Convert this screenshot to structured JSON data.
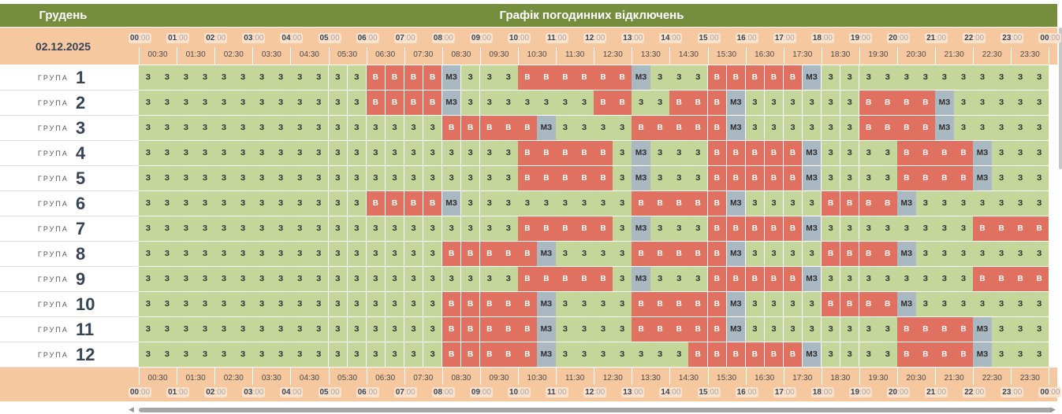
{
  "header": {
    "month": "Грудень",
    "title": "Графік погодинних відключень"
  },
  "date": "02.12.2025",
  "group_word": "ГРУПА",
  "hours": [
    "00",
    "01",
    "02",
    "03",
    "04",
    "05",
    "06",
    "07",
    "08",
    "09",
    "10",
    "11",
    "12",
    "13",
    "14",
    "15",
    "16",
    "17",
    "18",
    "19",
    "20",
    "21",
    "22",
    "23",
    "00"
  ],
  "minutes": ":00",
  "halves": [
    "00:30",
    "01:30",
    "02:30",
    "03:30",
    "04:30",
    "05:30",
    "06:30",
    "07:30",
    "08:30",
    "09:30",
    "10:30",
    "11:30",
    "12:30",
    "13:30",
    "14:30",
    "15:30",
    "16:30",
    "17:30",
    "18:30",
    "19:30",
    "20:30",
    "21:30",
    "22:30",
    "23:30"
  ],
  "labels": {
    "on": "З",
    "off": "В",
    "maybe": "МЗ"
  },
  "colors": {
    "header": "#768d3e",
    "band": "#f5c8a0",
    "on": "#c5d69b",
    "off": "#e07060",
    "maybe": "#aab8c2"
  },
  "groups": [
    {
      "number": "1",
      "slots": "zzzzzzzzzzzzvvvvmzzzvvvvvvmzzzvvvvvmzzzzzzzzzzzz"
    },
    {
      "number": "2",
      "slots": "zzzzzzzzzzzzvvvvmzzzzzzzvvzzvvvmzzzzzzvvvvmzzzzz"
    },
    {
      "number": "3",
      "slots": "zzzzzzzzzzzzzzzzvvvvvmzzzzvvvvvmzzzzzzvvvvmzzzzz"
    },
    {
      "number": "4",
      "slots": "zzzzzzzzzzzzzzzzzzzzvvvvvzmzzzvvvvvmzzzzvvvvmzzz"
    },
    {
      "number": "5",
      "slots": "zzzzzzzzzzzzzzzzzzzzvvvvvzmzzzvvvvvmzzzzvvvvmzzz"
    },
    {
      "number": "6",
      "slots": "zzzzzzzzzzzzvvvvmzzzzzzzzzvvvvvmzzzzvvvvmzzzzzzz"
    },
    {
      "number": "7",
      "slots": "zzzzzzzzzzzzzzzzzzzzvvvvvzmzzzvvvvvmzzzzzzzzvvvv"
    },
    {
      "number": "8",
      "slots": "zzzzzzzzzzzzzzzzvvvvvmzzzzvvvvvmzzzzvvvvmzzzzzzz"
    },
    {
      "number": "9",
      "slots": "zzzzzzzzzzzzzzzzzzzzvvvvvzmzzzvvvvvmzzzzzzzzvvvv"
    },
    {
      "number": "10",
      "slots": "zzzzzzzzzzzzzzzzvvvvvmzzzzvvvvvmzzzzvvvvmzzzzzzz"
    },
    {
      "number": "11",
      "slots": "zzzzzzzzzzzzzzzzvvvvvmzzzzvvvvvmzzzzzzzzvvvvmzzz"
    },
    {
      "number": "12",
      "slots": "zzzzzzzzzzzzzzzzvvvvvmzzzzzzzvvvvvvmzzzzvvvvmzzz"
    }
  ]
}
